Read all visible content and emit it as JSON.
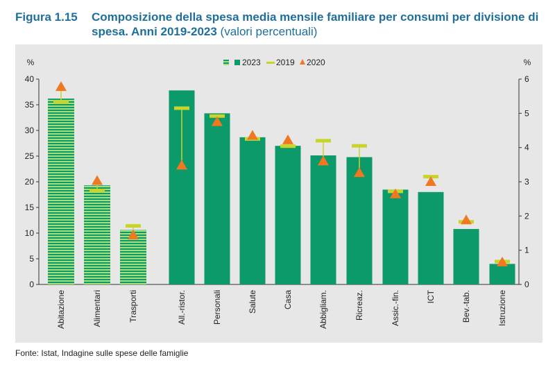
{
  "figure": {
    "label": "Figura 1.15",
    "title": "Composizione della spesa media mensile familiare per consumi per divisione di spesa. Anni 2019-2023",
    "subtitle": "(valori percentuali)",
    "source": "Fonte: Istat, Indagine sulle spese delle famiglie"
  },
  "colors": {
    "bar": "#0d9a6a",
    "bar_dark": "#0a7f55",
    "stripe_light": "#a7e07a",
    "marker_2019": "#c8d42a",
    "marker_2020": "#f07820",
    "panel": "#e7e7e7"
  },
  "chart_data": [
    {
      "type": "bar",
      "title": "",
      "ylabel": "%",
      "axis": "left",
      "ylim": [
        0,
        40
      ],
      "yticks": [
        "0",
        "5",
        "10",
        "15",
        "20",
        "25",
        "30",
        "35",
        "40"
      ],
      "categories": [
        "Abitazione",
        "Alimentari",
        "Trasporti"
      ],
      "series": [
        {
          "name": "2023",
          "values": [
            36.2,
            19.3,
            10.6
          ]
        },
        {
          "name": "2019",
          "values": [
            35.5,
            18.3,
            11.4
          ]
        },
        {
          "name": "2020",
          "values": [
            38.5,
            20.2,
            9.6
          ]
        }
      ]
    },
    {
      "type": "bar",
      "title": "",
      "ylabel": "%",
      "axis": "right",
      "ylim": [
        0,
        6
      ],
      "yticks": [
        "0",
        "1",
        "2",
        "3",
        "4",
        "5",
        "6"
      ],
      "categories": [
        "All.-ristor.",
        "Personali",
        "Salute",
        "Casa",
        "Abbigliam.",
        "Ricreaz.",
        "Assic.-fin.",
        "ICT",
        "Bev.-tab.",
        "Istruzione"
      ],
      "series": [
        {
          "name": "2023",
          "values": [
            5.67,
            5.0,
            4.3,
            4.05,
            3.77,
            3.72,
            2.77,
            2.7,
            1.62,
            0.6
          ]
        },
        {
          "name": "2019",
          "values": [
            5.15,
            4.92,
            4.25,
            4.04,
            4.2,
            4.05,
            2.72,
            3.15,
            1.83,
            0.67
          ]
        },
        {
          "name": "2020",
          "values": [
            3.48,
            4.75,
            4.35,
            4.22,
            3.6,
            3.26,
            2.64,
            3.0,
            1.88,
            0.65
          ]
        }
      ]
    }
  ],
  "legend": {
    "items": [
      {
        "label": "2023"
      },
      {
        "label": "2019"
      },
      {
        "label": "2020"
      }
    ]
  }
}
